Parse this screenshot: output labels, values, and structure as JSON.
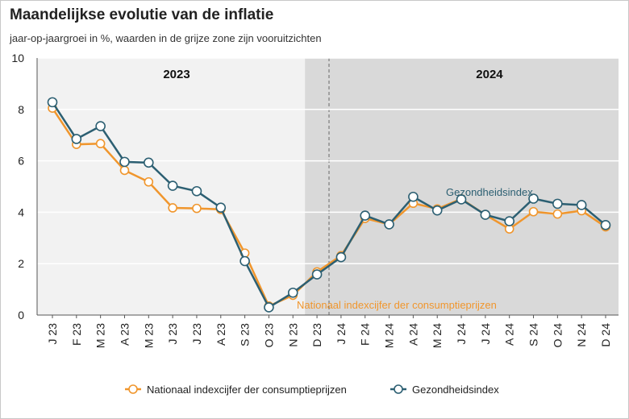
{
  "header": {
    "title": "Maandelijkse evolutie van de inflatie",
    "subtitle": "jaar-op-jaargroei in %, waarden in de grijze zone zijn vooruitzichten"
  },
  "colors": {
    "nicp": "#f0962d",
    "gezondheid": "#2c5f72",
    "forecast_bg": "#d9d9d9",
    "plot_bg": "#f2f2f2"
  },
  "chart_data": {
    "type": "line",
    "title": "Maandelijkse evolutie van de inflatie",
    "subtitle": "jaar-op-jaargroei in %, waarden in de grijze zone zijn vooruitzichten",
    "categories": [
      "J 23",
      "F 23",
      "M 23",
      "A 23",
      "M 23",
      "J 23",
      "J 23",
      "A 23",
      "S 23",
      "O 23",
      "N 23",
      "D 23",
      "J 24",
      "F 24",
      "M 24",
      "A 24",
      "M 24",
      "J 24",
      "J 24",
      "A 24",
      "S 24",
      "O 24",
      "N 24",
      "D 24"
    ],
    "ylim": [
      0,
      10
    ],
    "yticks": [
      0,
      2,
      4,
      6,
      8,
      10
    ],
    "grid": true,
    "forecast_start": "D 23",
    "year_labels": [
      {
        "label": "2023",
        "from": "J 23",
        "to": "D 23"
      },
      {
        "label": "2024",
        "from": "J 24",
        "to": "D 24"
      }
    ],
    "series": [
      {
        "name": "Nationaal indexcijfer der consumptieprijzen",
        "color": "#f0962d",
        "values": [
          8.05,
          6.64,
          6.67,
          5.63,
          5.18,
          4.17,
          4.15,
          4.11,
          2.41,
          0.35,
          0.77,
          1.68,
          2.31,
          3.76,
          3.53,
          4.35,
          4.13,
          4.52,
          3.9,
          3.35,
          4.02,
          3.93,
          4.06,
          3.43
        ]
      },
      {
        "name": "Gezondheidsindex",
        "color": "#2c5f72",
        "values": [
          8.28,
          6.85,
          7.35,
          5.96,
          5.93,
          5.03,
          4.82,
          4.18,
          2.1,
          0.3,
          0.87,
          1.58,
          2.25,
          3.87,
          3.53,
          4.6,
          4.07,
          4.5,
          3.9,
          3.65,
          4.53,
          4.33,
          4.28,
          3.5
        ]
      }
    ],
    "annotations": [
      {
        "text": "Gezondheidsindex",
        "series": "Gezondheidsindex"
      },
      {
        "text": "Nationaal indexcijfer der consumptieprijzen",
        "series": "Nationaal indexcijfer der consumptieprijzen"
      }
    ],
    "legend": {
      "placement": "bottom",
      "items": [
        "Nationaal indexcijfer der consumptieprijzen",
        "Gezondheidsindex"
      ]
    }
  }
}
